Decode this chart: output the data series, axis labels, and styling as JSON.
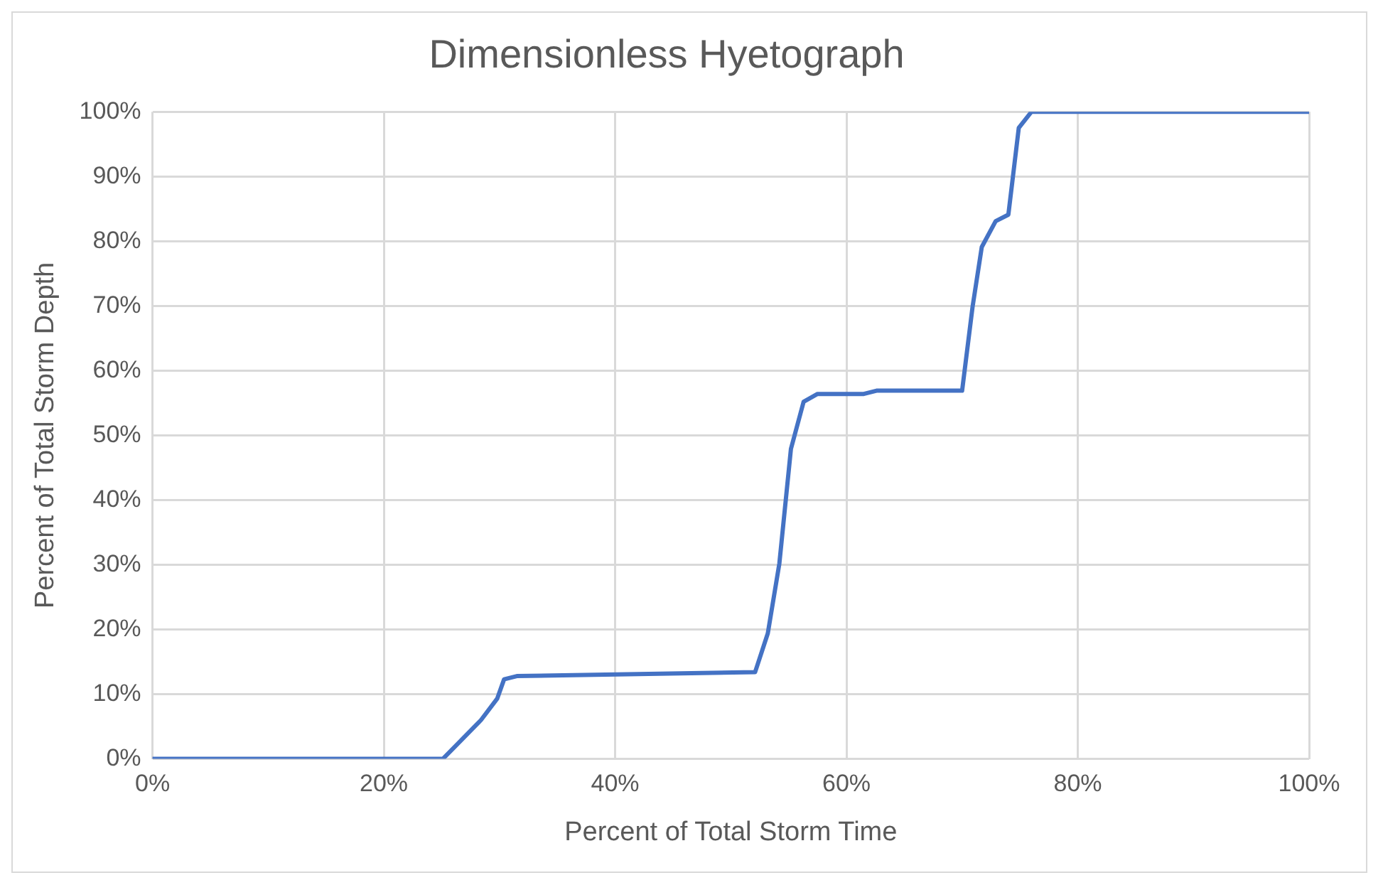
{
  "chart_data": {
    "type": "line",
    "title": "Dimensionless Hyetograph",
    "xlabel": "Percent of Total Storm Time",
    "ylabel": "Percent of Total Storm Depth",
    "series": [
      {
        "color": "#4472c4",
        "x": [
          0,
          25.1,
          26.1,
          28.4,
          29.8,
          30.4,
          31.5,
          52.1,
          53.2,
          54.2,
          55.2,
          56.3,
          57.5,
          61.5,
          62.6,
          70.0,
          70.9,
          71.7,
          72.9,
          74.0,
          74.9,
          76.0,
          100
        ],
        "values": [
          0,
          0,
          1.8,
          6,
          9.3,
          12.3,
          12.8,
          13.4,
          19.4,
          30.2,
          47.9,
          55.2,
          56.4,
          56.4,
          56.9,
          56.9,
          69.8,
          79.1,
          83.1,
          84.1,
          97.5,
          100,
          100
        ]
      }
    ],
    "xlim": [
      0,
      100
    ],
    "ylim": [
      0,
      100
    ],
    "xticks": [
      {
        "value": 0,
        "label": "0%"
      },
      {
        "value": 20,
        "label": "20%"
      },
      {
        "value": 40,
        "label": "40%"
      },
      {
        "value": 60,
        "label": "60%"
      },
      {
        "value": 80,
        "label": "80%"
      },
      {
        "value": 100,
        "label": "100%"
      }
    ],
    "yticks": [
      {
        "value": 0,
        "label": "0%"
      },
      {
        "value": 10,
        "label": "10%"
      },
      {
        "value": 20,
        "label": "20%"
      },
      {
        "value": 30,
        "label": "30%"
      },
      {
        "value": 40,
        "label": "40%"
      },
      {
        "value": 50,
        "label": "50%"
      },
      {
        "value": 60,
        "label": "60%"
      },
      {
        "value": 70,
        "label": "70%"
      },
      {
        "value": 80,
        "label": "80%"
      },
      {
        "value": 90,
        "label": "90%"
      },
      {
        "value": 100,
        "label": "100%"
      }
    ],
    "grid": true,
    "marker": "none",
    "line_style": "solid"
  }
}
